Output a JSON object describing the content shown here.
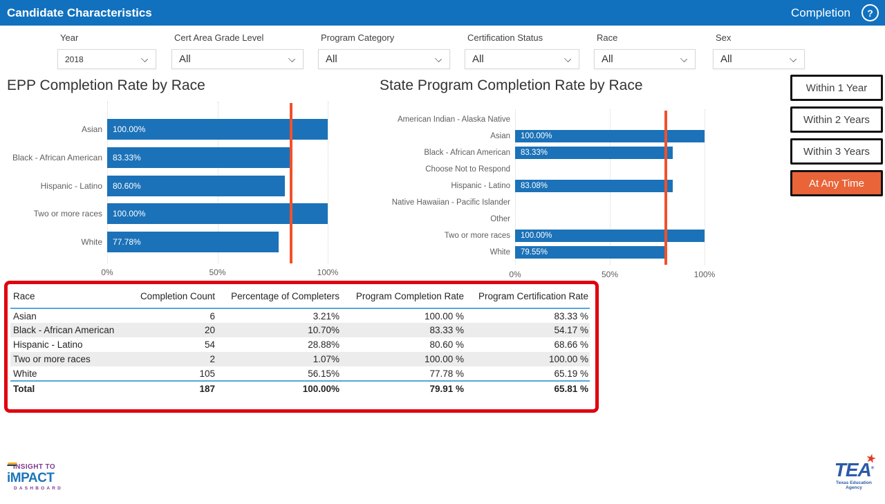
{
  "header": {
    "title": "Candidate Characteristics",
    "page_label": "Completion",
    "help_glyph": "?"
  },
  "filters": [
    {
      "label": "Year",
      "value": "2018"
    },
    {
      "label": "Cert Area Grade Level",
      "value": "All"
    },
    {
      "label": "Program Category",
      "value": "All"
    },
    {
      "label": "Certification Status",
      "value": "All"
    },
    {
      "label": "Race",
      "value": "All"
    },
    {
      "label": "Sex",
      "value": "All"
    }
  ],
  "time_buttons": [
    {
      "label": "Within 1 Year",
      "active": false
    },
    {
      "label": "Within 2 Years",
      "active": false
    },
    {
      "label": "Within 3 Years",
      "active": false
    },
    {
      "label": "At Any Time",
      "active": true
    }
  ],
  "chart_data": [
    {
      "type": "bar",
      "orientation": "horizontal",
      "title": "EPP Completion Rate by Race",
      "categories": [
        "Asian",
        "Black - African American",
        "Hispanic - Latino",
        "Two or more races",
        "White"
      ],
      "values": [
        100.0,
        83.33,
        80.6,
        100.0,
        77.78
      ],
      "labels": [
        "100.00%",
        "83.33%",
        "80.60%",
        "100.00%",
        "77.78%"
      ],
      "x_ticks": [
        "0%",
        "50%",
        "100%"
      ],
      "xlim": [
        0,
        100
      ],
      "gridlines_pct": [
        0,
        50,
        100
      ],
      "reference_line_pct": 83.4
    },
    {
      "type": "bar",
      "orientation": "horizontal",
      "title": "State Program Completion Rate by Race",
      "categories": [
        "American Indian - Alaska Native",
        "Asian",
        "Black - African American",
        "Choose Not to Respond",
        "Hispanic - Latino",
        "Native Hawaiian - Pacific Islander",
        "Other",
        "Two or more races",
        "White"
      ],
      "values": [
        null,
        100.0,
        83.33,
        null,
        83.08,
        null,
        null,
        100.0,
        79.55
      ],
      "labels": [
        "",
        "100.00%",
        "83.33%",
        "",
        "83.08%",
        "",
        "",
        "100.00%",
        "79.55%"
      ],
      "x_ticks": [
        "0%",
        "50%",
        "100%"
      ],
      "xlim": [
        0,
        100
      ],
      "gridlines_pct": [
        0,
        50,
        100
      ],
      "reference_line_pct": 79.6
    }
  ],
  "table": {
    "columns": [
      "Race",
      "Completion Count",
      "Percentage of Completers",
      "Program Completion Rate",
      "Program Certification Rate"
    ],
    "rows": [
      [
        "Asian",
        "6",
        "3.21%",
        "100.00 %",
        "83.33 %"
      ],
      [
        "Black - African American",
        "20",
        "10.70%",
        "83.33 %",
        "54.17 %"
      ],
      [
        "Hispanic - Latino",
        "54",
        "28.88%",
        "80.60 %",
        "68.66 %"
      ],
      [
        "Two or more races",
        "2",
        "1.07%",
        "100.00 %",
        "100.00 %"
      ],
      [
        "White",
        "105",
        "56.15%",
        "77.78 %",
        "65.19 %"
      ]
    ],
    "total_row": [
      "Total",
      "187",
      "100.00%",
      "79.91 %",
      "65.81 %"
    ]
  },
  "footer": {
    "left_logo": {
      "line1": "INSIGHT TO",
      "line2": "iMPACT",
      "line3": "DASHBOARD"
    },
    "right_logo": {
      "text": "TEA",
      "star": "★",
      "reg": "®",
      "subtext": "Texas Education Agency"
    }
  },
  "colors": {
    "header_bg": "#1171BE",
    "bar_blue": "#1B72B8",
    "reference_line": "#F1512B",
    "active_button_bg": "#E96438",
    "highlight_box_border": "#E0000F",
    "table_alt_row": "#ECECEC",
    "table_rule_blue": "#56A7DB"
  }
}
